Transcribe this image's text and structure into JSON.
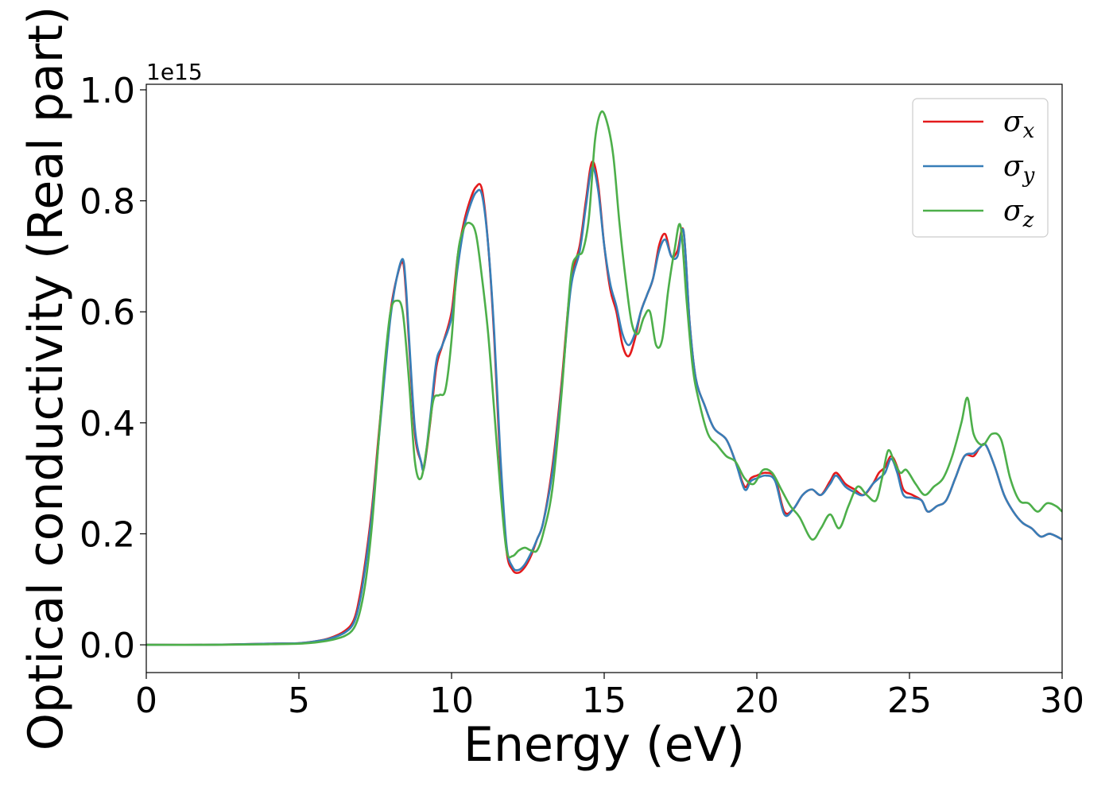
{
  "chart_data": {
    "type": "line",
    "xlabel": "Energy (eV)",
    "ylabel": "Optical conductivity (Real part)",
    "y_offset_label": "1e15",
    "xlim": [
      0,
      30
    ],
    "ylim": [
      -0.05,
      1.01
    ],
    "x_ticks": [
      0,
      5,
      10,
      15,
      20,
      25,
      30
    ],
    "y_ticks": [
      0.0,
      0.2,
      0.4,
      0.6,
      0.8,
      1.0
    ],
    "x_tick_labels": [
      "0",
      "5",
      "10",
      "15",
      "20",
      "25",
      "30"
    ],
    "y_tick_labels": [
      "0.0",
      "0.2",
      "0.4",
      "0.6",
      "0.8",
      "1.0"
    ],
    "grid": false,
    "legend_position": "top-right",
    "series": [
      {
        "name": "σx",
        "base": "σ",
        "sub": "x",
        "color": "#e41a1c",
        "x": [
          0,
          2,
          4,
          5,
          5.5,
          6,
          6.5,
          6.8,
          7.0,
          7.2,
          7.4,
          7.6,
          7.8,
          8.0,
          8.2,
          8.4,
          8.5,
          8.6,
          8.8,
          9.0,
          9.1,
          9.3,
          9.5,
          9.7,
          10.0,
          10.2,
          10.4,
          10.6,
          10.8,
          11.0,
          11.2,
          11.4,
          11.6,
          11.8,
          12.0,
          12.2,
          12.4,
          12.6,
          12.8,
          13.0,
          13.3,
          13.6,
          13.9,
          14.2,
          14.4,
          14.6,
          14.8,
          15.0,
          15.2,
          15.4,
          15.6,
          15.8,
          16.0,
          16.2,
          16.4,
          16.6,
          16.8,
          17.0,
          17.2,
          17.4,
          17.6,
          17.8,
          18.0,
          18.3,
          18.6,
          19.0,
          19.3,
          19.6,
          19.8,
          20.0,
          20.3,
          20.6,
          20.9,
          21.2,
          21.5,
          21.8,
          22.1,
          22.4,
          22.6,
          22.9,
          23.2,
          23.5,
          23.8,
          24.0,
          24.2,
          24.4,
          24.6,
          24.8,
          25.1,
          25.4,
          25.6,
          25.9,
          26.2,
          26.5,
          26.8,
          27.1,
          27.3,
          27.5,
          27.8,
          28.1,
          28.4,
          28.7,
          29.0,
          29.3,
          29.6,
          30.0
        ],
        "y": [
          0.0,
          0.0,
          0.002,
          0.003,
          0.006,
          0.012,
          0.025,
          0.045,
          0.09,
          0.16,
          0.25,
          0.37,
          0.49,
          0.6,
          0.66,
          0.69,
          0.64,
          0.55,
          0.38,
          0.33,
          0.32,
          0.4,
          0.5,
          0.54,
          0.6,
          0.7,
          0.76,
          0.8,
          0.825,
          0.82,
          0.72,
          0.55,
          0.32,
          0.17,
          0.135,
          0.13,
          0.14,
          0.16,
          0.19,
          0.22,
          0.32,
          0.47,
          0.65,
          0.72,
          0.8,
          0.87,
          0.83,
          0.72,
          0.64,
          0.6,
          0.54,
          0.52,
          0.55,
          0.6,
          0.63,
          0.66,
          0.72,
          0.74,
          0.7,
          0.71,
          0.745,
          0.58,
          0.48,
          0.43,
          0.39,
          0.37,
          0.33,
          0.285,
          0.3,
          0.305,
          0.31,
          0.3,
          0.24,
          0.245,
          0.27,
          0.28,
          0.27,
          0.295,
          0.31,
          0.29,
          0.28,
          0.27,
          0.29,
          0.31,
          0.32,
          0.34,
          0.32,
          0.28,
          0.27,
          0.26,
          0.24,
          0.25,
          0.26,
          0.3,
          0.34,
          0.34,
          0.355,
          0.36,
          0.32,
          0.27,
          0.24,
          0.22,
          0.21,
          0.195,
          0.2,
          0.19
        ]
      },
      {
        "name": "σy",
        "base": "σ",
        "sub": "y",
        "color": "#377eb8",
        "x": [
          0,
          2,
          4,
          5,
          5.5,
          6,
          6.5,
          6.8,
          7.0,
          7.2,
          7.4,
          7.6,
          7.8,
          8.0,
          8.2,
          8.4,
          8.5,
          8.6,
          8.8,
          9.0,
          9.1,
          9.3,
          9.5,
          9.7,
          10.0,
          10.2,
          10.4,
          10.6,
          10.8,
          11.0,
          11.2,
          11.4,
          11.6,
          11.8,
          12.0,
          12.2,
          12.4,
          12.6,
          12.8,
          13.0,
          13.3,
          13.6,
          13.9,
          14.2,
          14.4,
          14.6,
          14.8,
          15.0,
          15.2,
          15.4,
          15.6,
          15.8,
          16.0,
          16.2,
          16.4,
          16.6,
          16.8,
          17.0,
          17.2,
          17.4,
          17.6,
          17.8,
          18.0,
          18.3,
          18.6,
          19.0,
          19.3,
          19.6,
          19.8,
          20.0,
          20.3,
          20.6,
          20.9,
          21.2,
          21.5,
          21.8,
          22.1,
          22.4,
          22.6,
          22.9,
          23.2,
          23.5,
          23.8,
          24.0,
          24.2,
          24.4,
          24.6,
          24.8,
          25.1,
          25.4,
          25.6,
          25.9,
          26.2,
          26.5,
          26.8,
          27.1,
          27.3,
          27.5,
          27.8,
          28.1,
          28.4,
          28.7,
          29.0,
          29.3,
          29.6,
          30.0
        ],
        "y": [
          0.0,
          0.0,
          0.002,
          0.003,
          0.006,
          0.011,
          0.022,
          0.04,
          0.08,
          0.15,
          0.24,
          0.36,
          0.48,
          0.59,
          0.66,
          0.695,
          0.65,
          0.56,
          0.39,
          0.33,
          0.32,
          0.41,
          0.51,
          0.54,
          0.59,
          0.68,
          0.75,
          0.79,
          0.815,
          0.81,
          0.72,
          0.56,
          0.34,
          0.18,
          0.14,
          0.135,
          0.145,
          0.165,
          0.19,
          0.22,
          0.31,
          0.46,
          0.64,
          0.71,
          0.79,
          0.86,
          0.82,
          0.72,
          0.65,
          0.61,
          0.56,
          0.54,
          0.56,
          0.6,
          0.63,
          0.66,
          0.71,
          0.73,
          0.7,
          0.7,
          0.745,
          0.58,
          0.48,
          0.43,
          0.39,
          0.37,
          0.33,
          0.28,
          0.295,
          0.3,
          0.305,
          0.295,
          0.235,
          0.245,
          0.27,
          0.28,
          0.27,
          0.29,
          0.305,
          0.285,
          0.275,
          0.27,
          0.29,
          0.3,
          0.31,
          0.335,
          0.31,
          0.27,
          0.265,
          0.26,
          0.24,
          0.25,
          0.26,
          0.3,
          0.34,
          0.345,
          0.355,
          0.36,
          0.32,
          0.27,
          0.24,
          0.22,
          0.21,
          0.195,
          0.2,
          0.19
        ]
      },
      {
        "name": "σz",
        "base": "σ",
        "sub": "z",
        "color": "#4daf4a",
        "x": [
          0,
          2,
          4,
          5,
          5.5,
          6,
          6.5,
          6.8,
          7.0,
          7.2,
          7.4,
          7.6,
          7.8,
          8.0,
          8.2,
          8.4,
          8.6,
          8.8,
          9.0,
          9.2,
          9.4,
          9.6,
          9.8,
          10.0,
          10.2,
          10.4,
          10.6,
          10.8,
          11.0,
          11.2,
          11.4,
          11.6,
          11.8,
          12.0,
          12.2,
          12.4,
          12.6,
          12.8,
          13.0,
          13.3,
          13.6,
          13.9,
          14.1,
          14.3,
          14.5,
          14.7,
          14.9,
          15.1,
          15.3,
          15.5,
          15.7,
          15.9,
          16.1,
          16.3,
          16.5,
          16.7,
          16.9,
          17.1,
          17.3,
          17.5,
          17.7,
          17.9,
          18.1,
          18.4,
          18.7,
          19.0,
          19.3,
          19.6,
          19.9,
          20.2,
          20.5,
          20.8,
          21.1,
          21.4,
          21.8,
          22.1,
          22.4,
          22.7,
          23.0,
          23.3,
          23.6,
          23.9,
          24.1,
          24.3,
          24.5,
          24.7,
          24.9,
          25.2,
          25.5,
          25.8,
          26.1,
          26.4,
          26.7,
          26.9,
          27.1,
          27.4,
          27.7,
          28.0,
          28.3,
          28.6,
          28.9,
          29.2,
          29.5,
          29.8,
          30.0
        ],
        "y": [
          0.0,
          0.0,
          0.001,
          0.002,
          0.004,
          0.008,
          0.016,
          0.03,
          0.06,
          0.12,
          0.22,
          0.36,
          0.5,
          0.6,
          0.62,
          0.6,
          0.48,
          0.33,
          0.3,
          0.36,
          0.44,
          0.45,
          0.46,
          0.55,
          0.7,
          0.75,
          0.76,
          0.74,
          0.66,
          0.56,
          0.42,
          0.28,
          0.17,
          0.16,
          0.17,
          0.175,
          0.17,
          0.17,
          0.2,
          0.28,
          0.45,
          0.66,
          0.7,
          0.71,
          0.77,
          0.91,
          0.96,
          0.94,
          0.88,
          0.76,
          0.66,
          0.58,
          0.56,
          0.59,
          0.6,
          0.54,
          0.55,
          0.64,
          0.71,
          0.755,
          0.62,
          0.5,
          0.44,
          0.38,
          0.36,
          0.34,
          0.33,
          0.3,
          0.29,
          0.315,
          0.31,
          0.28,
          0.25,
          0.23,
          0.19,
          0.21,
          0.235,
          0.21,
          0.25,
          0.285,
          0.27,
          0.26,
          0.3,
          0.35,
          0.33,
          0.31,
          0.315,
          0.29,
          0.27,
          0.285,
          0.3,
          0.34,
          0.4,
          0.445,
          0.38,
          0.36,
          0.38,
          0.37,
          0.3,
          0.26,
          0.255,
          0.24,
          0.255,
          0.25,
          0.24
        ]
      }
    ]
  }
}
